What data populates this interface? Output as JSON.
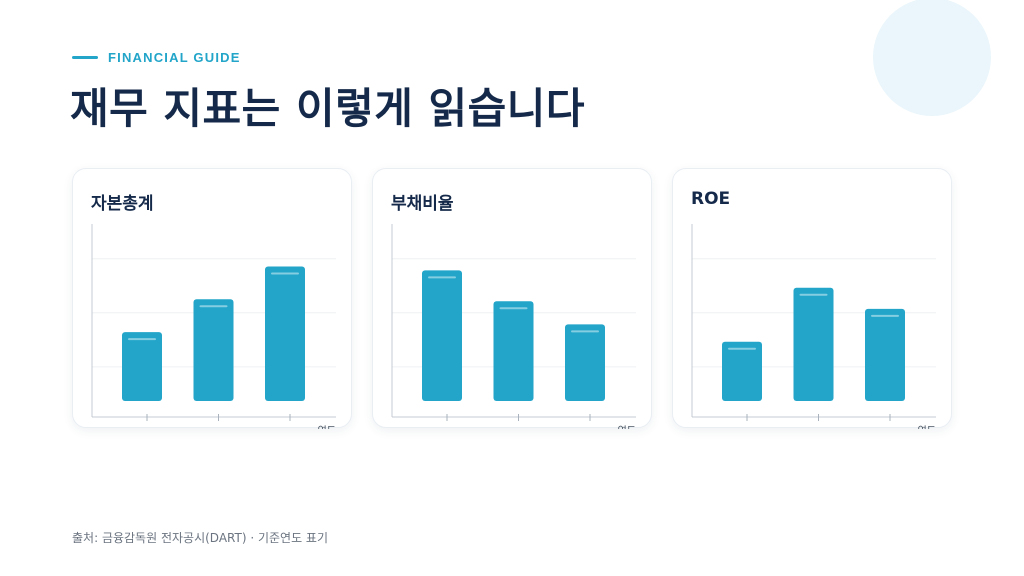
{
  "header": {
    "eyebrow": "FINANCIAL GUIDE",
    "title": "재무 지표는 이렇게 읽습니다"
  },
  "chart_data": [
    {
      "type": "bar",
      "title": "자본총계",
      "xlabel": "연도",
      "categories": [
        "",
        "",
        ""
      ],
      "values": [
        0.44,
        0.61,
        0.78
      ],
      "ylim": [
        0,
        1
      ],
      "grid": true,
      "bar_color": "#22a5c9"
    },
    {
      "type": "bar",
      "title": "부채비율",
      "xlabel": "연도",
      "categories": [
        "",
        "",
        ""
      ],
      "values": [
        0.76,
        0.6,
        0.48
      ],
      "ylim": [
        0,
        1
      ],
      "grid": true,
      "bar_color": "#22a5c9"
    },
    {
      "type": "bar",
      "title": "ROE",
      "xlabel": "연도",
      "categories": [
        "",
        "",
        ""
      ],
      "values": [
        0.39,
        0.67,
        0.56
      ],
      "ylim": [
        0,
        1
      ],
      "grid": true,
      "bar_color": "#22a5c9"
    }
  ],
  "footer": {
    "source": "출처: 금융감독원 전자공시(DART) · 기준연도 표기"
  }
}
